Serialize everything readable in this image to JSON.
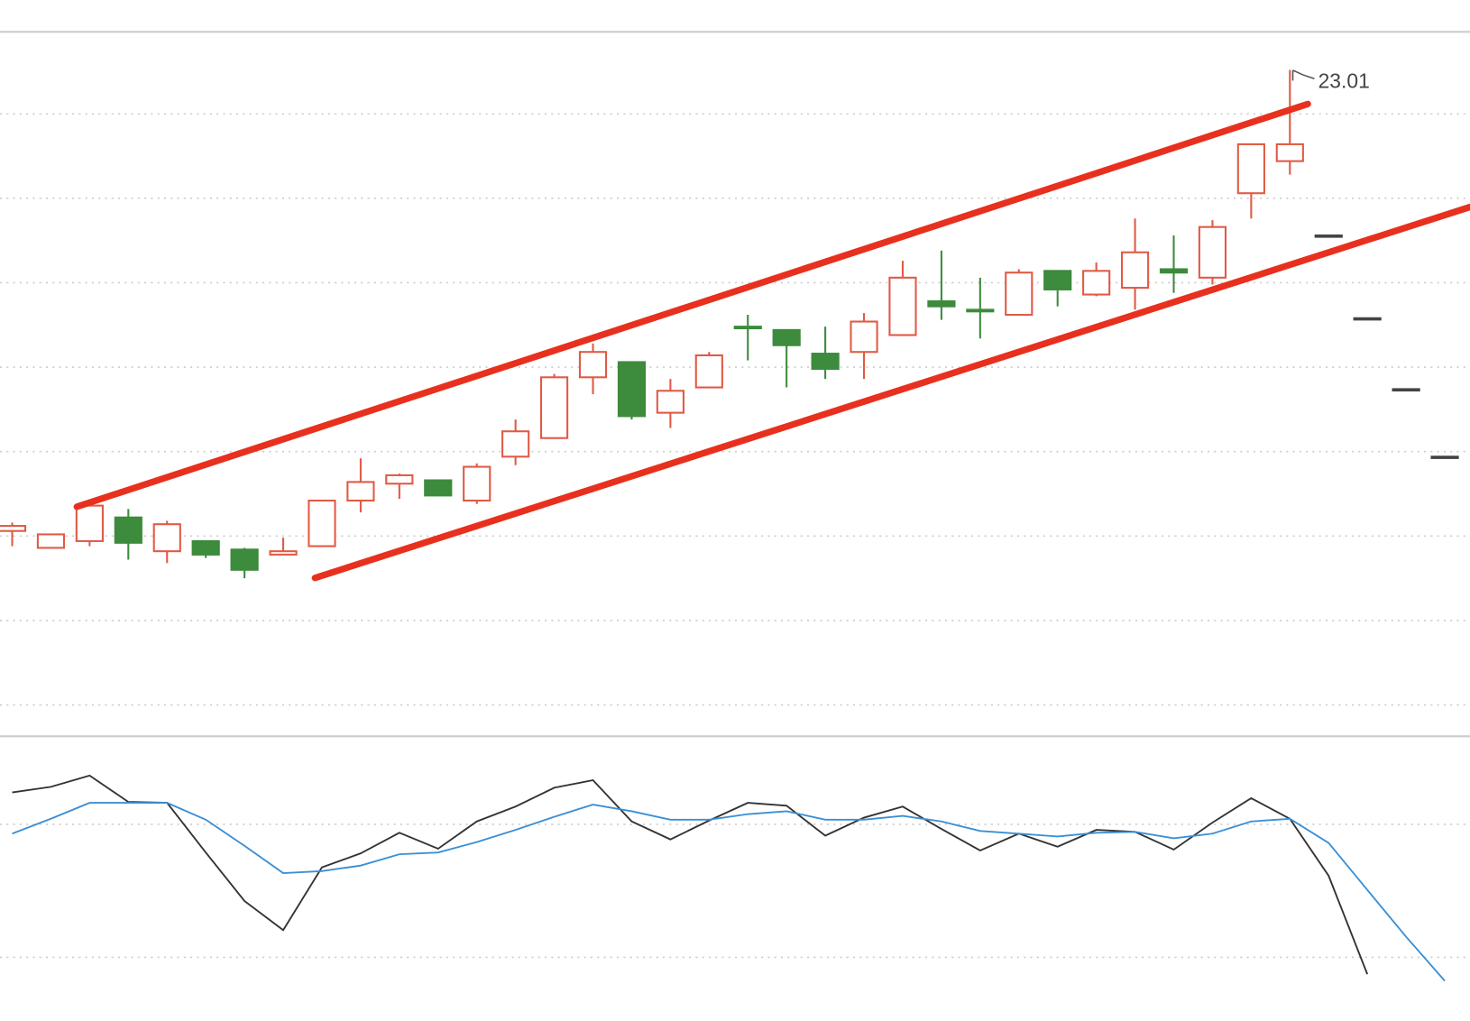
{
  "chart_data": [
    {
      "type": "candlestick",
      "annotation": "23.01",
      "up_color": "#e05a45",
      "down_color": "#3d8b3d",
      "flat_color": "#444444",
      "ylim": [
        19.07,
        23.23
      ],
      "yticks": [
        22.75,
        22.25,
        21.75,
        21.25,
        20.75,
        20.25,
        19.75,
        19.25
      ],
      "grid": true,
      "open": [
        20.28,
        20.18,
        20.22,
        20.36,
        20.16,
        20.22,
        20.17,
        20.14,
        20.19,
        20.46,
        20.56,
        20.58,
        20.46,
        20.72,
        20.83,
        21.19,
        21.28,
        20.98,
        21.13,
        21.49,
        21.47,
        21.33,
        21.34,
        21.44,
        21.64,
        21.59,
        21.56,
        21.82,
        21.68,
        21.72,
        21.83,
        21.78,
        22.28,
        22.47,
        22.03,
        21.54,
        21.12,
        20.72
      ],
      "high": [
        20.33,
        20.26,
        20.44,
        20.41,
        20.34,
        20.22,
        20.18,
        20.24,
        20.46,
        20.71,
        20.62,
        20.58,
        20.68,
        20.94,
        21.21,
        21.39,
        21.28,
        21.18,
        21.34,
        21.56,
        21.47,
        21.49,
        21.57,
        21.88,
        21.94,
        21.78,
        21.83,
        21.82,
        21.87,
        22.13,
        22.03,
        22.12,
        22.57,
        23.01,
        22.03,
        21.54,
        21.12,
        20.72
      ],
      "low": [
        20.19,
        20.18,
        20.19,
        20.11,
        20.09,
        20.12,
        20.0,
        20.14,
        20.19,
        20.39,
        20.47,
        20.49,
        20.44,
        20.67,
        20.83,
        21.09,
        20.94,
        20.89,
        21.13,
        21.29,
        21.13,
        21.18,
        21.18,
        21.44,
        21.53,
        21.42,
        21.56,
        21.61,
        21.67,
        21.59,
        21.69,
        21.74,
        22.13,
        22.39,
        22.03,
        21.54,
        21.12,
        20.72
      ],
      "close": [
        20.31,
        20.26,
        20.43,
        20.21,
        20.32,
        20.14,
        20.05,
        20.16,
        20.46,
        20.57,
        20.61,
        20.49,
        20.66,
        20.87,
        21.19,
        21.34,
        20.96,
        21.11,
        21.32,
        21.48,
        21.38,
        21.24,
        21.52,
        21.78,
        21.61,
        21.58,
        21.81,
        21.71,
        21.82,
        21.93,
        21.81,
        22.08,
        22.57,
        22.57,
        22.03,
        21.54,
        21.12,
        20.72
      ]
    },
    {
      "type": "line",
      "ylim": [
        -8.7,
        119.3
      ],
      "yticks": [
        80,
        20
      ],
      "grid": true,
      "series": [
        {
          "color": "#333333",
          "values": [
            94.4,
            96.9,
            102.0,
            90.1,
            89.7,
            67.3,
            45.4,
            32.3,
            60.6,
            66.9,
            76.2,
            69.0,
            81.3,
            88.0,
            96.5,
            99.9,
            81.3,
            73.2,
            81.7,
            89.7,
            88.4,
            74.9,
            83.0,
            88.0,
            77.9,
            68.2,
            75.8,
            69.9,
            77.5,
            76.6,
            68.6,
            80.8,
            91.8,
            82.5,
            56.8,
            12.4,
            null,
            null
          ]
        },
        {
          "color": "#3b8fd4",
          "values": [
            75.8,
            82.5,
            89.7,
            89.7,
            89.7,
            82.1,
            70.3,
            58.0,
            58.9,
            61.4,
            66.5,
            67.3,
            72.0,
            77.5,
            83.4,
            88.9,
            85.9,
            82.1,
            82.1,
            84.6,
            85.9,
            82.1,
            82.1,
            83.8,
            81.3,
            77.0,
            75.8,
            74.5,
            76.2,
            76.6,
            73.7,
            75.8,
            81.3,
            82.5,
            71.6,
            50.4,
            29.3,
            9.4
          ]
        }
      ]
    }
  ]
}
